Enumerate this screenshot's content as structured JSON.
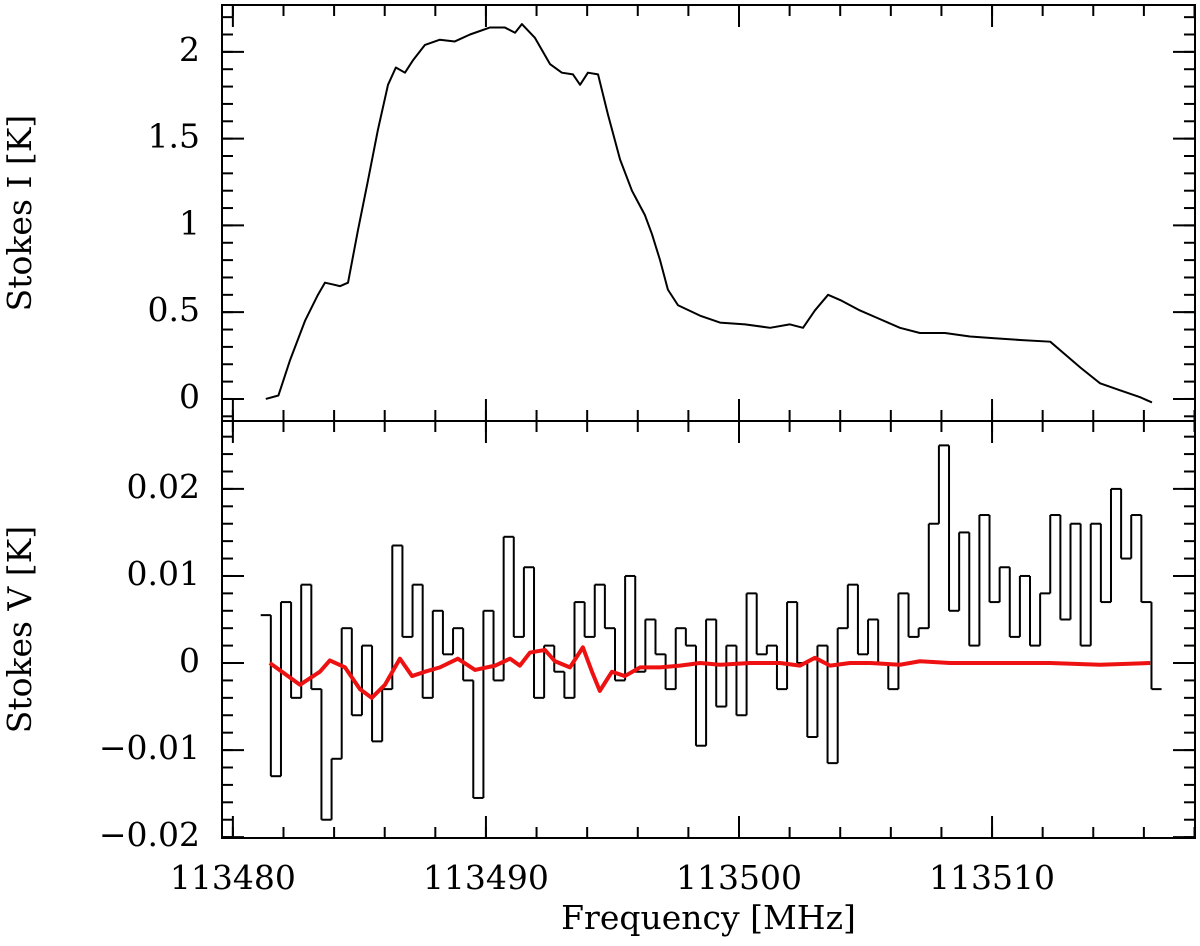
{
  "chart_data": [
    {
      "type": "line",
      "ylabel": "Stokes I [K]",
      "xlim": [
        113479.57,
        113518.02
      ],
      "ylim": [
        -0.127,
        2.27
      ],
      "xticks": [
        113480,
        113490,
        113500,
        113510
      ],
      "yticks": [
        0,
        0.5,
        1,
        1.5,
        2
      ],
      "x_minor_step": 2,
      "y_minor_step": 0.1,
      "series": [
        {
          "color": "#000000",
          "x": [
            113481.3,
            113481.8,
            113482.25,
            113482.85,
            113483.36,
            113483.64,
            113483.95,
            113484.23,
            113484.55,
            113484.94,
            113485.34,
            113485.73,
            113486.13,
            113486.44,
            113486.8,
            113487.11,
            113487.59,
            113488.18,
            113488.77,
            113489.37,
            113490.15,
            113490.75,
            113491.15,
            113491.42,
            113491.94,
            113492.53,
            113493.0,
            113493.44,
            113493.72,
            113494.03,
            113494.43,
            113494.82,
            113495.3,
            113495.77,
            113496.28,
            113496.56,
            113496.88,
            113497.19,
            113497.59,
            113498.46,
            113499.25,
            113500.24,
            113501.23,
            113502.0,
            113502.53,
            113503.0,
            113503.52,
            113504.0,
            113504.78,
            113505.57,
            113506.36,
            113507.15,
            113508.14,
            113509.13,
            113510.1,
            113511.1,
            113512.3,
            113512.7,
            113513.5,
            113514.27,
            113515.06,
            113515.85,
            113516.32
          ],
          "values": [
            0,
            0.02,
            0.22,
            0.45,
            0.6,
            0.67,
            0.66,
            0.65,
            0.67,
            0.97,
            1.26,
            1.55,
            1.81,
            1.91,
            1.88,
            1.95,
            2.04,
            2.07,
            2.06,
            2.1,
            2.14,
            2.14,
            2.11,
            2.16,
            2.08,
            1.93,
            1.88,
            1.87,
            1.81,
            1.88,
            1.87,
            1.64,
            1.38,
            1.2,
            1.06,
            0.95,
            0.8,
            0.63,
            0.54,
            0.48,
            0.44,
            0.43,
            0.41,
            0.43,
            0.41,
            0.51,
            0.6,
            0.57,
            0.51,
            0.46,
            0.41,
            0.38,
            0.38,
            0.36,
            0.35,
            0.34,
            0.33,
            0.28,
            0.18,
            0.09,
            0.05,
            0.01,
            -0.02
          ]
        }
      ]
    },
    {
      "type": "line",
      "ylabel": "Stokes V [K]",
      "xlabel": "Frequency [MHz]",
      "xlim": [
        113479.57,
        113518.02
      ],
      "ylim": [
        -0.0201,
        0.0278
      ],
      "xticks": [
        113480,
        113490,
        113500,
        113510
      ],
      "yticks": [
        {
          "value": -0.02,
          "label": "−0.02"
        },
        {
          "value": -0.01,
          "label": "−0.01"
        },
        0,
        0.01,
        0.02
      ],
      "x_minor_step": 2,
      "y_minor_step": 0.002,
      "series": [
        {
          "color": "#000000",
          "drawstyle": "steps-mid",
          "x": [
            113481.3,
            113481.7,
            113482.1,
            113482.5,
            113482.9,
            113483.3,
            113483.7,
            113484.1,
            113484.5,
            113484.9,
            113485.3,
            113485.7,
            113486.1,
            113486.5,
            113486.9,
            113487.3,
            113487.7,
            113488.1,
            113488.5,
            113488.9,
            113489.3,
            113489.7,
            113490.1,
            113490.5,
            113490.9,
            113491.3,
            113491.7,
            113492.1,
            113492.5,
            113492.9,
            113493.3,
            113493.7,
            113494.1,
            113494.5,
            113494.9,
            113495.3,
            113495.7,
            113496.1,
            113496.5,
            113496.9,
            113497.3,
            113497.7,
            113498.1,
            113498.5,
            113498.9,
            113499.3,
            113499.7,
            113500.1,
            113500.5,
            113500.9,
            113501.3,
            113501.7,
            113502.1,
            113502.5,
            113502.9,
            113503.3,
            113503.7,
            113504.1,
            113504.5,
            113504.9,
            113505.3,
            113505.7,
            113506.1,
            113506.5,
            113506.9,
            113507.3,
            113507.7,
            113508.1,
            113508.5,
            113508.9,
            113509.3,
            113509.7,
            113510.1,
            113510.5,
            113510.9,
            113511.3,
            113511.7,
            113512.1,
            113512.5,
            113512.9,
            113513.3,
            113513.7,
            113514.1,
            113514.5,
            113514.9,
            113515.3,
            113515.7,
            113516.1,
            113516.5
          ],
          "values": [
            0.0055,
            -0.013,
            0.007,
            -0.004,
            0.009,
            -0.003,
            -0.018,
            -0.011,
            0.004,
            -0.006,
            0.002,
            -0.009,
            -0.003,
            0.0135,
            0.003,
            0.009,
            -0.004,
            0.006,
            0.001,
            0.004,
            -0.002,
            -0.0155,
            0.006,
            -0.002,
            0.0145,
            0.003,
            0.011,
            -0.004,
            0.002,
            -0.001,
            -0.004,
            0.007,
            0.003,
            0.009,
            0.004,
            -0.002,
            0.01,
            -0.001,
            0.005,
            0.001,
            -0.003,
            0.004,
            0.002,
            -0.0095,
            0.005,
            -0.005,
            0.002,
            -0.006,
            0.008,
            0.001,
            0.002,
            -0.003,
            0.007,
            0,
            -0.0085,
            0.002,
            -0.0115,
            0.004,
            0.009,
            0.001,
            0.005,
            0,
            -0.003,
            0.008,
            0.003,
            0.004,
            0.016,
            0.025,
            0.006,
            0.015,
            0.002,
            0.017,
            0.007,
            0.011,
            0.003,
            0.01,
            0.002,
            0.008,
            0.017,
            0.005,
            0.016,
            0.002,
            0.016,
            0.007,
            0.02,
            0.012,
            0.017,
            0.007,
            -0.003
          ]
        },
        {
          "color": "#ee1111",
          "x": [
            113481.46,
            113482.65,
            113483.44,
            113483.83,
            113484.43,
            113485.02,
            113485.49,
            113486.01,
            113486.6,
            113487.08,
            113487.59,
            113488.18,
            113488.89,
            113489.57,
            113490.36,
            113490.95,
            113491.34,
            113491.74,
            113492.33,
            113492.73,
            113493.32,
            113493.83,
            113494.19,
            113494.5,
            113494.98,
            113495.49,
            113496.09,
            113496.88,
            113497.67,
            113498.46,
            113499.25,
            113500.43,
            113501.62,
            113502.41,
            113503.0,
            113503.6,
            113504.39,
            113505.18,
            113506.36,
            113507.15,
            113508.34,
            113510.32,
            113512.29,
            113514.27,
            113516.25
          ],
          "values": [
            0,
            -0.0025,
            -0.001,
            0.0003,
            -0.0005,
            -0.003,
            -0.004,
            -0.0025,
            0.0005,
            -0.0015,
            -0.001,
            -0.0005,
            0.0005,
            -0.0008,
            -0.0003,
            0.0005,
            -0.0003,
            0.0012,
            0.0015,
            0.0002,
            -0.0005,
            0.0018,
            -0.001,
            -0.0032,
            -0.001,
            -0.0015,
            -0.0005,
            -0.0005,
            -0.0003,
            0,
            -0.0002,
            0,
            0,
            -0.0003,
            0.0006,
            -0.0003,
            0,
            0,
            -0.0002,
            0.0002,
            0,
            0,
            0,
            -0.0002,
            0
          ]
        }
      ]
    }
  ]
}
